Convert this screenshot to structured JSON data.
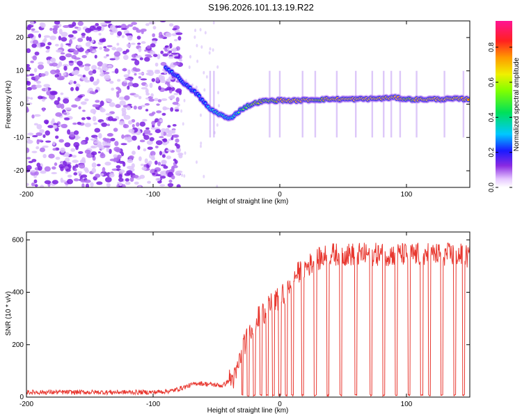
{
  "title": "S196.2026.101.13.19.R22",
  "chart_data": [
    {
      "type": "heatmap",
      "name": "spectrogram",
      "xlabel": "Height of straight line (km)",
      "ylabel": "Frequency (Hz)",
      "xlim": [
        -200,
        150
      ],
      "ylim": [
        -25,
        25
      ],
      "xticks": [
        -200,
        -100,
        0,
        100
      ],
      "yticks": [
        -20,
        -10,
        0,
        10,
        20
      ],
      "colorbar": {
        "label": "Normalized spectral amplitude",
        "range": [
          0,
          0.95
        ],
        "ticks": [
          0.0,
          0.2,
          0.4,
          0.6,
          0.8
        ]
      },
      "noise_region_x": [
        -200,
        -78
      ],
      "ridge": {
        "x": [
          -90,
          -80,
          -72,
          -65,
          -60,
          -55,
          -50,
          -45,
          -40,
          -35,
          -30,
          -25,
          -20,
          -15,
          -10,
          -5,
          0,
          10,
          20,
          30,
          40,
          50,
          60,
          70,
          80,
          90,
          100,
          110,
          120,
          130,
          140,
          150
        ],
        "freq": [
          11,
          8,
          5,
          3,
          0.5,
          -1.5,
          -2.5,
          -3.5,
          -4.5,
          -3,
          -1.5,
          -0.5,
          0.2,
          0.8,
          1.0,
          1.0,
          1.2,
          1.0,
          1.2,
          1.4,
          1.5,
          1.5,
          1.5,
          1.6,
          1.7,
          2.0,
          1.5,
          1.4,
          1.5,
          1.5,
          1.6,
          1.5
        ],
        "amplitude": [
          0.25,
          0.28,
          0.3,
          0.3,
          0.3,
          0.32,
          0.35,
          0.35,
          0.35,
          0.4,
          0.5,
          0.55,
          0.7,
          0.8,
          0.75,
          0.8,
          0.85,
          0.85,
          0.9,
          0.8,
          0.85,
          0.9,
          0.92,
          0.9,
          0.85,
          0.92,
          0.8,
          0.85,
          0.9,
          0.9,
          0.85,
          0.85
        ]
      },
      "vertical_streaks_x": [
        -55,
        -52,
        -8,
        0,
        18,
        28,
        45,
        60,
        73,
        82,
        88,
        95,
        108,
        130,
        145
      ]
    },
    {
      "type": "line",
      "name": "snr",
      "xlabel": "Height of straight line (km)",
      "ylabel": "SNR (10 * v/v)",
      "xlim": [
        -200,
        150
      ],
      "ylim": [
        0,
        630
      ],
      "xticks": [
        -200,
        -100,
        0,
        100
      ],
      "yticks": [
        0,
        200,
        400,
        600
      ],
      "color": "#e8372f",
      "envelope": {
        "x": [
          -200,
          -150,
          -100,
          -85,
          -75,
          -65,
          -55,
          -45,
          -40,
          -35,
          -30,
          -25,
          -20,
          -15,
          -10,
          -5,
          0,
          5,
          10,
          20,
          30,
          40,
          60,
          80,
          100,
          120,
          140,
          150
        ],
        "y": [
          15,
          15,
          15,
          20,
          35,
          50,
          45,
          40,
          60,
          70,
          170,
          230,
          280,
          310,
          330,
          360,
          370,
          400,
          450,
          490,
          520,
          540,
          540,
          540,
          540,
          540,
          540,
          530
        ]
      },
      "dropouts_x": [
        -30,
        -25,
        -20,
        -15,
        -10,
        -5,
        0,
        5,
        10,
        18,
        28,
        38,
        48,
        60,
        72,
        82,
        92,
        102,
        112,
        118,
        128,
        138,
        145
      ]
    }
  ]
}
